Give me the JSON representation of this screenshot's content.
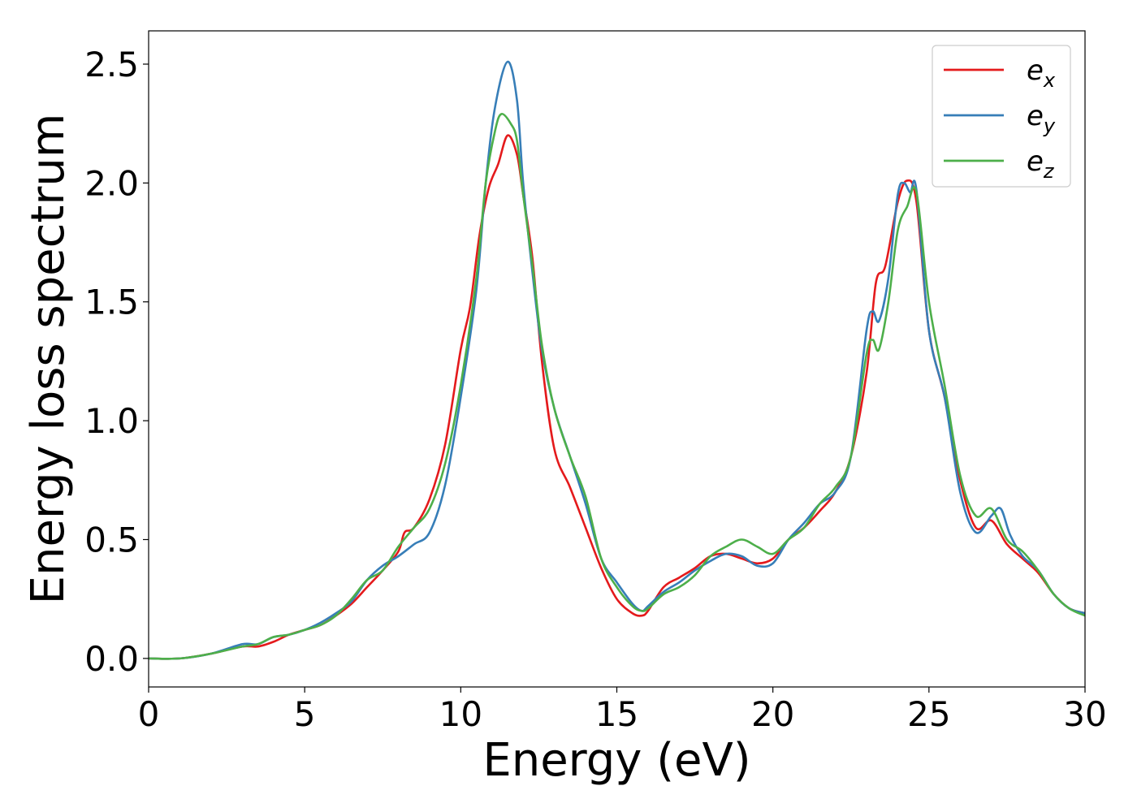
{
  "chart_data": {
    "type": "line",
    "title": "",
    "xlabel": "Energy (eV)",
    "ylabel": "Energy loss spectrum",
    "xlim": [
      0,
      30
    ],
    "ylim": [
      -0.12,
      2.64
    ],
    "xticks": [
      0,
      5,
      10,
      15,
      20,
      25,
      30
    ],
    "xtick_labels": [
      "0",
      "5",
      "10",
      "15",
      "20",
      "25",
      "30"
    ],
    "yticks": [
      0.0,
      0.5,
      1.0,
      1.5,
      2.0,
      2.5
    ],
    "ytick_labels": [
      "0.0",
      "0.5",
      "1.0",
      "1.5",
      "2.0",
      "2.5"
    ],
    "grid": false,
    "legend_position": "top-right",
    "series": [
      {
        "name": "e_x",
        "legend_base": "e",
        "legend_sub": "x",
        "color": "#e41a1c",
        "points": [
          [
            0,
            0.0
          ],
          [
            1,
            0.0
          ],
          [
            2,
            0.02
          ],
          [
            3,
            0.05
          ],
          [
            3.5,
            0.05
          ],
          [
            4,
            0.07
          ],
          [
            4.5,
            0.1
          ],
          [
            5,
            0.12
          ],
          [
            5.5,
            0.14
          ],
          [
            6,
            0.18
          ],
          [
            6.5,
            0.23
          ],
          [
            7,
            0.3
          ],
          [
            7.5,
            0.37
          ],
          [
            8,
            0.45
          ],
          [
            8.2,
            0.53
          ],
          [
            8.5,
            0.55
          ],
          [
            9,
            0.67
          ],
          [
            9.5,
            0.9
          ],
          [
            10,
            1.3
          ],
          [
            10.3,
            1.48
          ],
          [
            10.6,
            1.78
          ],
          [
            10.9,
            1.98
          ],
          [
            11.2,
            2.08
          ],
          [
            11.5,
            2.2
          ],
          [
            11.8,
            2.12
          ],
          [
            12,
            1.95
          ],
          [
            12.3,
            1.68
          ],
          [
            12.6,
            1.25
          ],
          [
            13,
            0.88
          ],
          [
            13.5,
            0.72
          ],
          [
            14,
            0.55
          ],
          [
            14.5,
            0.38
          ],
          [
            15,
            0.25
          ],
          [
            15.5,
            0.19
          ],
          [
            15.8,
            0.18
          ],
          [
            16,
            0.2
          ],
          [
            16.5,
            0.3
          ],
          [
            17,
            0.34
          ],
          [
            17.5,
            0.38
          ],
          [
            18,
            0.43
          ],
          [
            18.5,
            0.44
          ],
          [
            19,
            0.42
          ],
          [
            19.5,
            0.4
          ],
          [
            20,
            0.42
          ],
          [
            20.5,
            0.5
          ],
          [
            21,
            0.55
          ],
          [
            21.5,
            0.62
          ],
          [
            22,
            0.7
          ],
          [
            22.5,
            0.85
          ],
          [
            23,
            1.2
          ],
          [
            23.3,
            1.58
          ],
          [
            23.6,
            1.65
          ],
          [
            24,
            1.92
          ],
          [
            24.3,
            2.01
          ],
          [
            24.6,
            1.92
          ],
          [
            25,
            1.38
          ],
          [
            25.5,
            1.1
          ],
          [
            26,
            0.75
          ],
          [
            26.5,
            0.55
          ],
          [
            27,
            0.58
          ],
          [
            27.5,
            0.48
          ],
          [
            28,
            0.42
          ],
          [
            28.5,
            0.36
          ],
          [
            29,
            0.27
          ],
          [
            29.5,
            0.21
          ],
          [
            30,
            0.19
          ]
        ]
      },
      {
        "name": "e_y",
        "legend_base": "e",
        "legend_sub": "y",
        "color": "#377eb8",
        "points": [
          [
            0,
            0.0
          ],
          [
            1,
            0.0
          ],
          [
            2,
            0.02
          ],
          [
            3,
            0.06
          ],
          [
            3.5,
            0.06
          ],
          [
            4,
            0.09
          ],
          [
            4.5,
            0.1
          ],
          [
            5,
            0.12
          ],
          [
            5.5,
            0.15
          ],
          [
            6,
            0.19
          ],
          [
            6.5,
            0.24
          ],
          [
            7,
            0.33
          ],
          [
            7.5,
            0.39
          ],
          [
            8,
            0.43
          ],
          [
            8.5,
            0.48
          ],
          [
            9,
            0.53
          ],
          [
            9.5,
            0.73
          ],
          [
            10,
            1.1
          ],
          [
            10.5,
            1.55
          ],
          [
            10.8,
            2.0
          ],
          [
            11.1,
            2.32
          ],
          [
            11.5,
            2.51
          ],
          [
            11.8,
            2.35
          ],
          [
            12,
            2.0
          ],
          [
            12.3,
            1.62
          ],
          [
            12.6,
            1.3
          ],
          [
            13,
            1.05
          ],
          [
            13.5,
            0.85
          ],
          [
            14,
            0.65
          ],
          [
            14.5,
            0.42
          ],
          [
            15,
            0.32
          ],
          [
            15.5,
            0.23
          ],
          [
            15.8,
            0.2
          ],
          [
            16,
            0.22
          ],
          [
            16.5,
            0.28
          ],
          [
            17,
            0.32
          ],
          [
            17.5,
            0.37
          ],
          [
            18,
            0.41
          ],
          [
            18.5,
            0.44
          ],
          [
            19,
            0.43
          ],
          [
            19.5,
            0.39
          ],
          [
            20,
            0.4
          ],
          [
            20.5,
            0.5
          ],
          [
            21,
            0.57
          ],
          [
            21.5,
            0.65
          ],
          [
            22,
            0.7
          ],
          [
            22.5,
            0.85
          ],
          [
            23,
            1.38
          ],
          [
            23.2,
            1.46
          ],
          [
            23.4,
            1.42
          ],
          [
            23.7,
            1.6
          ],
          [
            24,
            1.95
          ],
          [
            24.2,
            2.0
          ],
          [
            24.4,
            1.96
          ],
          [
            24.6,
            1.97
          ],
          [
            25,
            1.38
          ],
          [
            25.5,
            1.1
          ],
          [
            26,
            0.7
          ],
          [
            26.5,
            0.53
          ],
          [
            27,
            0.6
          ],
          [
            27.3,
            0.63
          ],
          [
            27.6,
            0.52
          ],
          [
            28,
            0.43
          ],
          [
            28.5,
            0.37
          ],
          [
            29,
            0.27
          ],
          [
            29.5,
            0.21
          ],
          [
            30,
            0.19
          ]
        ]
      },
      {
        "name": "e_z",
        "legend_base": "e",
        "legend_sub": "z",
        "color": "#4daf4a",
        "points": [
          [
            0,
            0.0
          ],
          [
            1,
            0.0
          ],
          [
            2,
            0.02
          ],
          [
            3,
            0.05
          ],
          [
            3.5,
            0.06
          ],
          [
            4,
            0.09
          ],
          [
            4.5,
            0.1
          ],
          [
            5,
            0.12
          ],
          [
            5.5,
            0.14
          ],
          [
            6,
            0.18
          ],
          [
            6.5,
            0.25
          ],
          [
            7,
            0.33
          ],
          [
            7.5,
            0.37
          ],
          [
            8,
            0.47
          ],
          [
            8.5,
            0.55
          ],
          [
            9,
            0.63
          ],
          [
            9.5,
            0.82
          ],
          [
            10,
            1.15
          ],
          [
            10.5,
            1.6
          ],
          [
            10.8,
            2.0
          ],
          [
            11.1,
            2.22
          ],
          [
            11.3,
            2.29
          ],
          [
            11.6,
            2.25
          ],
          [
            11.8,
            2.18
          ],
          [
            12,
            1.95
          ],
          [
            12.3,
            1.65
          ],
          [
            12.6,
            1.32
          ],
          [
            13,
            1.05
          ],
          [
            13.5,
            0.85
          ],
          [
            14,
            0.68
          ],
          [
            14.5,
            0.42
          ],
          [
            15,
            0.3
          ],
          [
            15.5,
            0.22
          ],
          [
            15.8,
            0.2
          ],
          [
            16,
            0.21
          ],
          [
            16.5,
            0.27
          ],
          [
            17,
            0.3
          ],
          [
            17.5,
            0.35
          ],
          [
            18,
            0.43
          ],
          [
            18.5,
            0.47
          ],
          [
            19,
            0.5
          ],
          [
            19.5,
            0.47
          ],
          [
            20,
            0.44
          ],
          [
            20.5,
            0.5
          ],
          [
            21,
            0.55
          ],
          [
            21.5,
            0.65
          ],
          [
            22,
            0.72
          ],
          [
            22.5,
            0.85
          ],
          [
            23,
            1.28
          ],
          [
            23.2,
            1.34
          ],
          [
            23.4,
            1.3
          ],
          [
            23.7,
            1.5
          ],
          [
            24,
            1.8
          ],
          [
            24.3,
            1.9
          ],
          [
            24.6,
            1.96
          ],
          [
            25,
            1.5
          ],
          [
            25.5,
            1.15
          ],
          [
            26,
            0.77
          ],
          [
            26.5,
            0.6
          ],
          [
            27,
            0.63
          ],
          [
            27.5,
            0.5
          ],
          [
            28,
            0.45
          ],
          [
            28.5,
            0.37
          ],
          [
            29,
            0.27
          ],
          [
            29.5,
            0.21
          ],
          [
            30,
            0.18
          ]
        ]
      }
    ]
  }
}
